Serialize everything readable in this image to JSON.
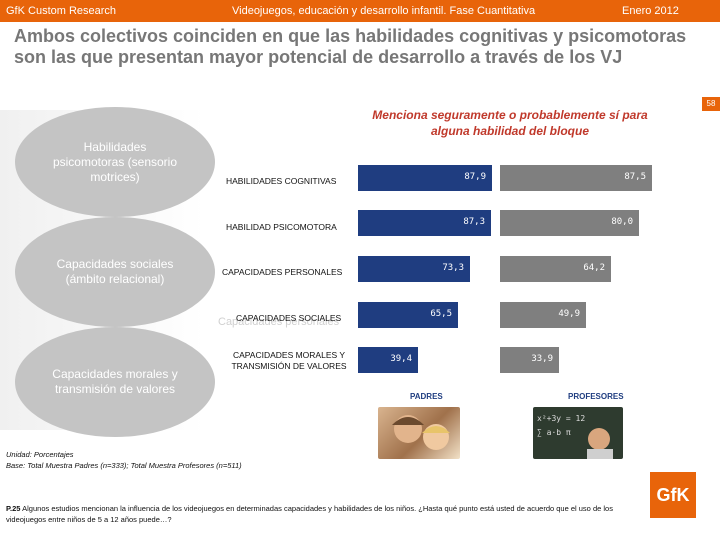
{
  "header": {
    "company": "GfK Custom Research",
    "study": "Videojuegos, educación y desarrollo infantil. Fase Cuantitativa",
    "date": "Enero 2012"
  },
  "title": "Ambos colectivos coinciden en que las habilidades cognitivas y psicomotoras son las que presentan mayor potencial de desarrollo a través de los VJ",
  "page_number": "58",
  "left_groups": [
    "Habilidades psicomotoras (sensorio motrices)",
    "Capacidades sociales (ámbito relacional)",
    "Capacidades morales y transmisión de valores"
  ],
  "ghost_label": "Capacidades personales",
  "subtitle": "Menciona seguramente o probablemente sí para alguna habilidad del bloque",
  "colors": {
    "parents": "#1f3d80",
    "teachers": "#7f7f7f",
    "accent": "#e8640a"
  },
  "chart_data": {
    "type": "bar",
    "categories": [
      "HABILIDADES COGNITIVAS",
      "HABILIDAD PSICOMOTORA",
      "CAPACIDADES PERSONALES",
      "CAPACIDADES SOCIALES",
      "CAPACIDADES MORALES Y TRANSMISIÓN DE VALORES"
    ],
    "series": [
      {
        "name": "PADRES",
        "values": [
          87.9,
          87.3,
          73.3,
          65.5,
          39.4
        ]
      },
      {
        "name": "PROFESORES",
        "values": [
          87.5,
          80.0,
          64.2,
          49.9,
          33.9
        ]
      }
    ],
    "value_labels": {
      "PADRES": [
        "87,9",
        "87,3",
        "73,3",
        "65,5",
        "39,4"
      ],
      "PROFESORES": [
        "87,5",
        "80,0",
        "64,2",
        "49,9",
        "33,9"
      ]
    },
    "ylim": [
      0,
      100
    ]
  },
  "footnote": {
    "unit": "Unidad: Porcentajes",
    "base": "Base: Total Muestra Padres (n=333); Total Muestra Profesores (n=511)"
  },
  "question": {
    "code": "P.25",
    "text": "Algunos estudios mencionan la influencia de los videojuegos en determinadas capacidades y habilidades de los niños. ¿Hasta qué punto está usted de acuerdo que el uso de los videojuegos entre niños de 5 a 12 años puede…?"
  },
  "logo": "GfK"
}
